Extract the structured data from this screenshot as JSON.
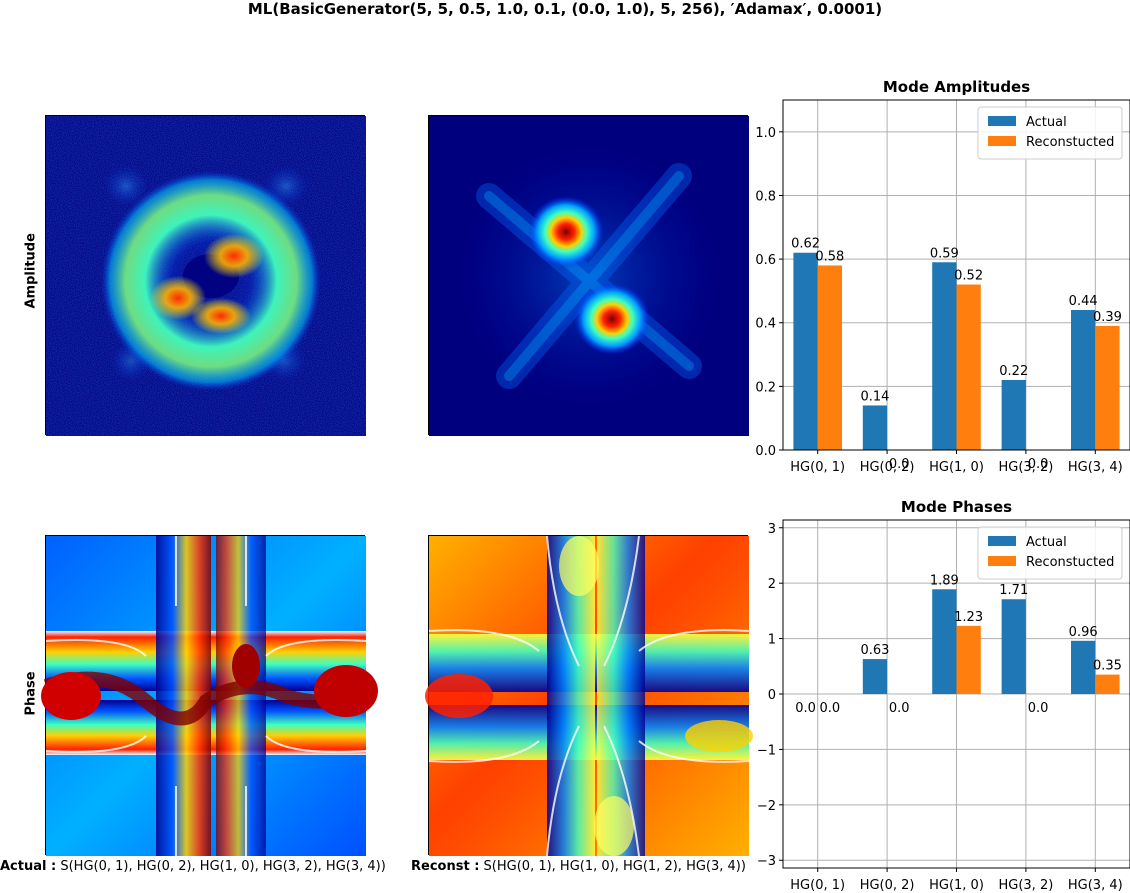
{
  "suptitle": "ML(BasicGenerator(5, 5, 0.5, 1.0, 0.1, (0.0, 1.0), 5, 256), ′Adamax′, 0.0001)",
  "row_labels": {
    "amplitude": "Amplitude",
    "phase": "Phase"
  },
  "captions": {
    "actual_prefix": "Actual :",
    "actual_text": "S(HG(0, 1), HG(0, 2), HG(1, 0), HG(3, 2), HG(3, 4))",
    "reconst_prefix": "Reconst :",
    "reconst_text": "S(HG(0, 1), HG(1, 0), HG(1, 2), HG(3, 4))"
  },
  "colors": {
    "actual": "#1f77b4",
    "reconstructed": "#ff7f0e",
    "grid": "#b0b0b0"
  },
  "chart_data": [
    {
      "type": "bar",
      "title": "Mode Amplitudes",
      "categories": [
        "HG(0, 1)",
        "HG(0, 2)",
        "HG(1, 0)",
        "HG(3, 2)",
        "HG(3, 4)"
      ],
      "series": [
        {
          "name": "Actual",
          "values": [
            0.62,
            0.14,
            0.59,
            0.22,
            0.44
          ]
        },
        {
          "name": "Reconstucted",
          "values": [
            0.58,
            0.0,
            0.52,
            0.0,
            0.39
          ]
        }
      ],
      "data_labels": [
        [
          "0.62",
          "0.14",
          "0.59",
          "0.22",
          "0.44"
        ],
        [
          "0.58",
          "0.0",
          "0.52",
          "0.0",
          "0.39"
        ]
      ],
      "ylim": [
        0,
        1.1
      ],
      "yticks": [
        0.0,
        0.2,
        0.4,
        0.6,
        0.8,
        1.0
      ],
      "ytick_labels": [
        "0.0",
        "0.2",
        "0.4",
        "0.6",
        "0.8",
        "1.0"
      ],
      "grid": true,
      "legend": "top-right"
    },
    {
      "type": "bar",
      "title": "Mode Phases",
      "categories": [
        "HG(0, 1)",
        "HG(0, 2)",
        "HG(1, 0)",
        "HG(3, 2)",
        "HG(3, 4)"
      ],
      "series": [
        {
          "name": "Actual",
          "values": [
            0.0,
            0.63,
            1.89,
            1.71,
            0.96
          ]
        },
        {
          "name": "Reconstucted",
          "values": [
            0.0,
            0.0,
            1.23,
            0.0,
            0.35
          ]
        }
      ],
      "data_labels": [
        [
          "0.0",
          "0.63",
          "1.89",
          "1.71",
          "0.96"
        ],
        [
          "0.0",
          "0.0",
          "1.23",
          "0.0",
          "0.35"
        ]
      ],
      "ylim": [
        -3.14,
        3.14
      ],
      "yticks": [
        -3,
        -2,
        -1,
        0,
        1,
        2,
        3
      ],
      "ytick_labels": [
        "−3",
        "−2",
        "−1",
        "0",
        "1",
        "2",
        "3"
      ],
      "grid": true,
      "legend": "top-right"
    }
  ]
}
